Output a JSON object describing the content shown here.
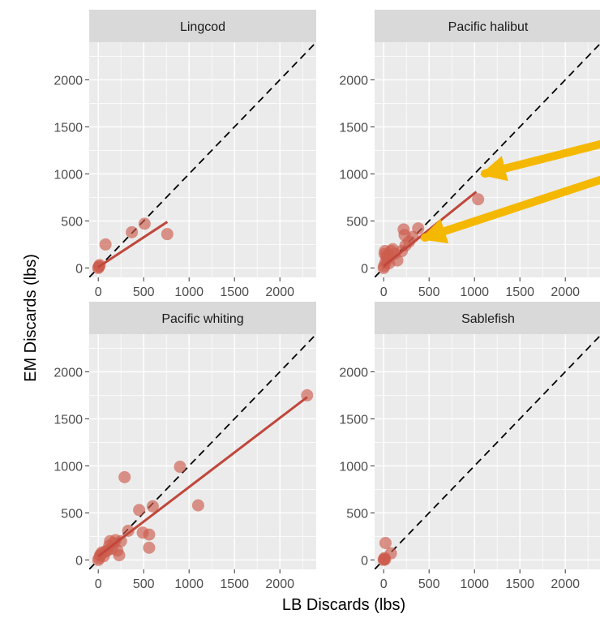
{
  "chart_data": {
    "type": "scatter",
    "xlabel": "LB Discards (lbs)",
    "ylabel": "EM Discards (lbs)",
    "xlim": [
      -100,
      2400
    ],
    "ylim": [
      -100,
      2400
    ],
    "x_ticks": [
      "0",
      "500",
      "1000",
      "1500",
      "2000"
    ],
    "y_ticks": [
      "0",
      "500",
      "1000",
      "1500",
      "2000"
    ],
    "grid": true,
    "reference_line": "dashed 1:1 line y = x",
    "colors": {
      "points": "#cd5c4d",
      "fit_line": "#c0473b",
      "panel_background": "#ebebeb",
      "strip_background": "#d9d9d9",
      "arrows": "#f5b800"
    },
    "panels": [
      {
        "label": "Lingcod",
        "points": [
          [
            0,
            0
          ],
          [
            5,
            10
          ],
          [
            10,
            20
          ],
          [
            15,
            30
          ],
          [
            80,
            250
          ],
          [
            370,
            380
          ],
          [
            510,
            470
          ],
          [
            760,
            360
          ]
        ],
        "fit": [
          [
            0,
            10
          ],
          [
            760,
            490
          ]
        ]
      },
      {
        "label": "Pacific halibut",
        "points": [
          [
            0,
            0
          ],
          [
            5,
            20
          ],
          [
            10,
            150
          ],
          [
            15,
            180
          ],
          [
            20,
            60
          ],
          [
            30,
            120
          ],
          [
            40,
            100
          ],
          [
            50,
            140
          ],
          [
            60,
            50
          ],
          [
            80,
            180
          ],
          [
            100,
            200
          ],
          [
            120,
            150
          ],
          [
            150,
            80
          ],
          [
            200,
            180
          ],
          [
            220,
            410
          ],
          [
            230,
            350
          ],
          [
            240,
            240
          ],
          [
            280,
            280
          ],
          [
            320,
            330
          ],
          [
            380,
            420
          ],
          [
            1040,
            730
          ]
        ],
        "fit": [
          [
            0,
            20
          ],
          [
            1020,
            810
          ]
        ]
      },
      {
        "label": "Pacific whiting",
        "points": [
          [
            0,
            0
          ],
          [
            10,
            20
          ],
          [
            20,
            50
          ],
          [
            30,
            60
          ],
          [
            40,
            80
          ],
          [
            60,
            40
          ],
          [
            80,
            90
          ],
          [
            100,
            100
          ],
          [
            120,
            150
          ],
          [
            130,
            200
          ],
          [
            150,
            120
          ],
          [
            170,
            180
          ],
          [
            190,
            210
          ],
          [
            210,
            100
          ],
          [
            230,
            50
          ],
          [
            250,
            200
          ],
          [
            290,
            880
          ],
          [
            330,
            310
          ],
          [
            450,
            530
          ],
          [
            490,
            290
          ],
          [
            560,
            130
          ],
          [
            560,
            270
          ],
          [
            600,
            570
          ],
          [
            900,
            990
          ],
          [
            1100,
            580
          ],
          [
            2300,
            1750
          ]
        ],
        "fit": [
          [
            0,
            40
          ],
          [
            2300,
            1730
          ]
        ]
      },
      {
        "label": "Sablefish",
        "points": [
          [
            0,
            0
          ],
          [
            5,
            10
          ],
          [
            10,
            20
          ],
          [
            15,
            5
          ],
          [
            20,
            180
          ],
          [
            80,
            70
          ]
        ],
        "fit": null
      }
    ]
  }
}
